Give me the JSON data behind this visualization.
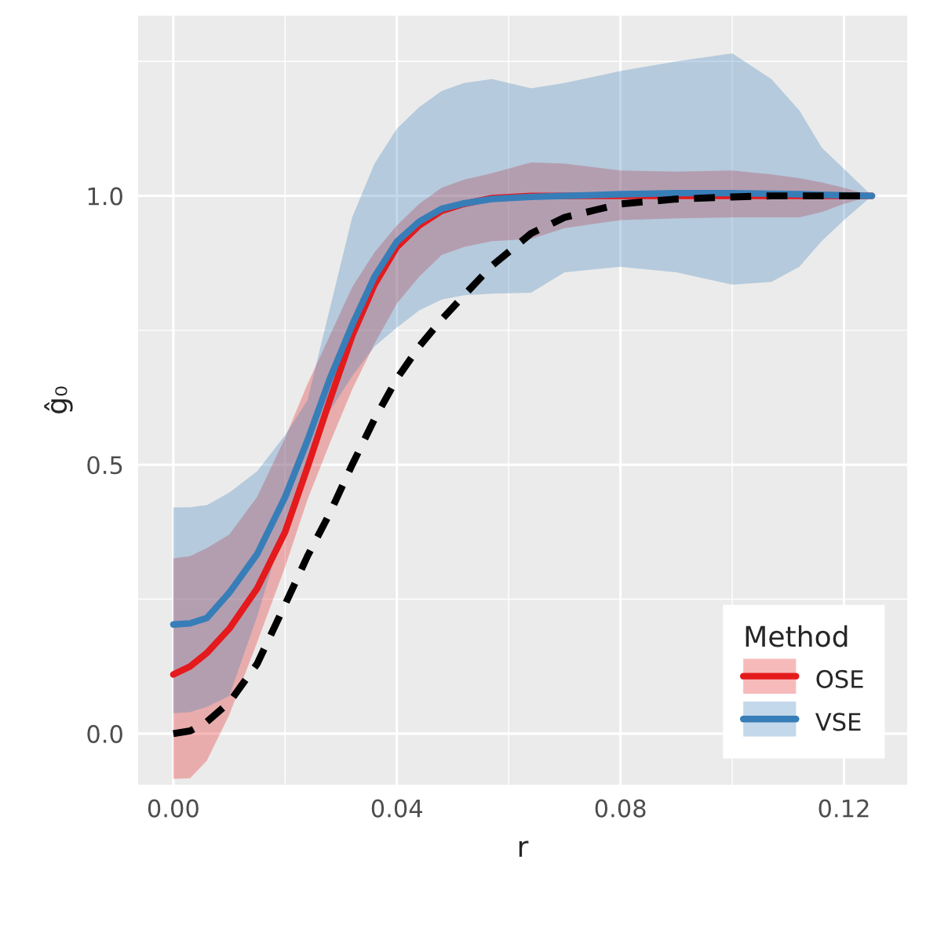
{
  "chart_data": {
    "type": "line",
    "xlabel": "r",
    "ylabel": "ĝ₀",
    "legend_title": "Method",
    "xlim": [
      -0.0063,
      0.1313
    ],
    "ylim": [
      -0.095,
      1.335
    ],
    "xticks": [
      {
        "value": 0,
        "label": "0.00"
      },
      {
        "value": 0.02,
        "label": null
      },
      {
        "value": 0.04,
        "label": "0.04"
      },
      {
        "value": 0.06,
        "label": null
      },
      {
        "value": 0.08,
        "label": "0.08"
      },
      {
        "value": 0.1,
        "label": null
      },
      {
        "value": 0.12,
        "label": "0.12"
      }
    ],
    "yticks": [
      {
        "value": 0,
        "label": "0.0"
      },
      {
        "value": 0.25,
        "label": null
      },
      {
        "value": 0.5,
        "label": "0.5"
      },
      {
        "value": 0.75,
        "label": null
      },
      {
        "value": 1,
        "label": "1.0"
      },
      {
        "value": 1.25,
        "label": null
      }
    ],
    "grid": true,
    "legend": "bottom right",
    "x": [
      0,
      0.003,
      0.006,
      0.01,
      0.015,
      0.02,
      0.024,
      0.028,
      0.032,
      0.036,
      0.04,
      0.044,
      0.048,
      0.052,
      0.057,
      0.064,
      0.07,
      0.08,
      0.09,
      0.1,
      0.107,
      0.112,
      0.116,
      0.12,
      0.125
    ],
    "series": [
      {
        "name": "OSE",
        "color": "#e41a1c",
        "line_style": "solid",
        "values": [
          0.11,
          0.125,
          0.15,
          0.195,
          0.27,
          0.375,
          0.495,
          0.62,
          0.74,
          0.835,
          0.905,
          0.945,
          0.972,
          0.985,
          0.996,
          1.0,
          1.0,
          1.0,
          1.0,
          1.0,
          1.0,
          1.0,
          1.0,
          1.0,
          1.0
        ],
        "upper": [
          0.326,
          0.33,
          0.345,
          0.37,
          0.44,
          0.55,
          0.65,
          0.74,
          0.83,
          0.895,
          0.945,
          0.985,
          1.015,
          1.03,
          1.042,
          1.062,
          1.06,
          1.047,
          1.045,
          1.047,
          1.04,
          1.033,
          1.025,
          1.015,
          1.0
        ],
        "lower": [
          -0.084,
          -0.083,
          -0.05,
          0.035,
          0.17,
          0.31,
          0.435,
          0.54,
          0.64,
          0.725,
          0.8,
          0.85,
          0.89,
          0.905,
          0.916,
          0.92,
          0.94,
          0.955,
          0.958,
          0.96,
          0.96,
          0.96,
          0.97,
          0.985,
          1.0
        ]
      },
      {
        "name": "VSE",
        "color": "#377eb8",
        "line_style": "solid",
        "values": [
          0.203,
          0.205,
          0.215,
          0.262,
          0.334,
          0.44,
          0.545,
          0.66,
          0.76,
          0.85,
          0.915,
          0.952,
          0.976,
          0.986,
          0.994,
          0.998,
          1.0,
          1.003,
          1.005,
          1.005,
          1.004,
          1.003,
          1.002,
          1.001,
          1.0
        ],
        "upper": [
          0.421,
          0.421,
          0.425,
          0.448,
          0.488,
          0.555,
          0.62,
          0.79,
          0.96,
          1.06,
          1.125,
          1.165,
          1.195,
          1.21,
          1.217,
          1.2,
          1.21,
          1.232,
          1.25,
          1.265,
          1.217,
          1.159,
          1.09,
          1.05,
          1.0
        ],
        "lower": [
          0.038,
          0.04,
          0.05,
          0.07,
          0.218,
          0.39,
          0.505,
          0.6,
          0.665,
          0.72,
          0.755,
          0.787,
          0.807,
          0.815,
          0.818,
          0.82,
          0.858,
          0.868,
          0.858,
          0.835,
          0.84,
          0.868,
          0.916,
          0.955,
          1.0
        ]
      },
      {
        "color": "#000000",
        "line_style": "dashed",
        "values": [
          0,
          0.005,
          0.022,
          0.058,
          0.13,
          0.24,
          0.33,
          0.41,
          0.5,
          0.585,
          0.66,
          0.72,
          0.77,
          0.815,
          0.87,
          0.93,
          0.96,
          0.985,
          0.994,
          0.998,
          1.0,
          1.0,
          1.0,
          1.0,
          1.0
        ]
      }
    ]
  }
}
